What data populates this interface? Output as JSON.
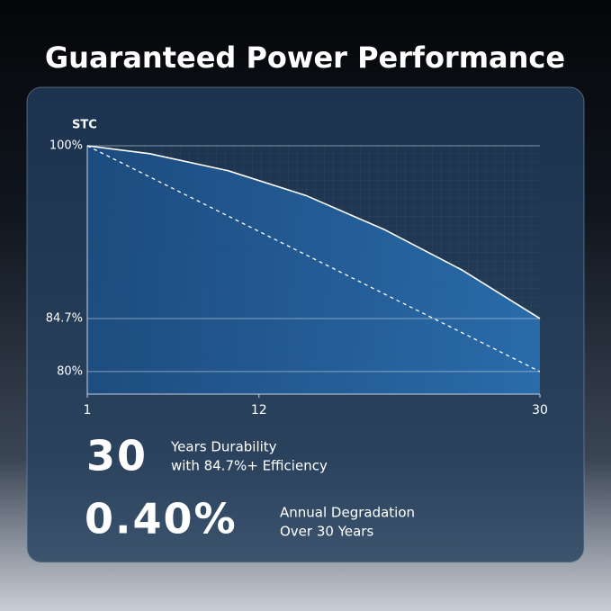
{
  "chart_data": {
    "type": "area",
    "title": "Guaranteed Power Performance",
    "y_label": "STC",
    "xlim": [
      1,
      30
    ],
    "xticks": [
      1,
      12,
      30
    ],
    "ylim": [
      78,
      100
    ],
    "yticks": [
      {
        "value": 80,
        "label": "80%"
      },
      {
        "value": 84.7,
        "label": "84.7%"
      },
      {
        "value": 100,
        "label": "100%"
      }
    ],
    "grid": true,
    "series": [
      {
        "color": "#ffffff",
        "style": "solid",
        "x": [
          1,
          5,
          10,
          15,
          20,
          25,
          30
        ],
        "values": [
          100,
          99.3,
          97.8,
          95.6,
          92.6,
          89.0,
          84.7
        ]
      },
      {
        "color": "#ffffff",
        "style": "dashed",
        "x": [
          1,
          30
        ],
        "values": [
          100,
          80
        ]
      }
    ]
  },
  "stats": [
    {
      "value": "30",
      "lines": [
        "Years Durability",
        "with 84.7%+ Efficiency"
      ]
    },
    {
      "value": "0.40%",
      "lines": [
        "Annual Degradation",
        "Over 30 Years"
      ]
    }
  ]
}
